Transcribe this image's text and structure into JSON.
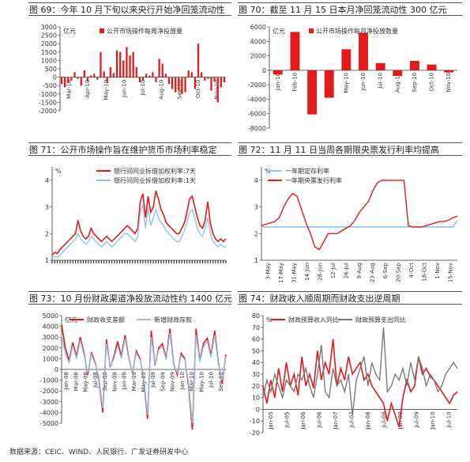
{
  "footer": "数据来源：CEIC、WIND、人民银行、广发证券研发中心",
  "colors": {
    "red": "#e31a1c",
    "gray": "#7a7a7a",
    "lightblue": "#8fc3ea"
  },
  "captions": {
    "c69": "图 69：今年 10 月下旬以来央行开始净回笼流动性",
    "c70": "图 70：截至 11 月 15 日本月净回笼流动性 300 亿元",
    "c71": "图 71：公开市场操作旨在维护货币市场利率稳定",
    "c72": "图 72：11 月 11 日当周各期限央票发行利率均提高",
    "c73": "图 73：10 月份财政渠道净投放流动性约 1400 亿元",
    "c74": "图 74：财政收入顺周期而财政支出逆周期"
  },
  "chart_data": [
    {
      "id": "p69",
      "type": "bar",
      "unit": "亿元",
      "legend": [
        "公开市场操作每周净投放量"
      ],
      "ylim": [
        -2000,
        3000
      ],
      "yticks": [
        -2000,
        -1500,
        -1000,
        -500,
        0,
        500,
        1000,
        1500,
        2000,
        2500,
        3000
      ],
      "xticks": [
        "Mar-10",
        "Apr-10",
        "May-10",
        "Jun-10",
        "Jul-10",
        "Aug-10",
        "Sep-10",
        "Oct-10",
        "Nov-10"
      ],
      "series": [
        {
          "name": "公开市场操作每周净投放量",
          "values": [
            -400,
            -600,
            -350,
            -200,
            300,
            -100,
            -500,
            400,
            -250,
            100,
            200,
            -150,
            1500,
            350,
            -350,
            600,
            250,
            1600,
            1500,
            1000,
            1800,
            1300,
            1500,
            600,
            -300,
            -200,
            200,
            100,
            300,
            -300,
            1100,
            800,
            200,
            -400,
            -700,
            -900,
            -800,
            -1000,
            -900,
            400,
            300,
            -700,
            2000,
            300,
            -200,
            -100,
            -800,
            -250,
            -1500,
            -600,
            -300
          ]
        }
      ]
    },
    {
      "id": "p70",
      "type": "bar",
      "unit": "亿元",
      "legend": [
        "公开市场操作每月净投放数量"
      ],
      "ylim": [
        -8000,
        6000
      ],
      "yticks": [
        -8000,
        -6000,
        -4000,
        -2000,
        0,
        2000,
        4000,
        6000
      ],
      "xticks": [
        "Jan-10",
        "Feb-10",
        "Mar-10",
        "Apr-10",
        "May-10",
        "Jun-10",
        "Jul-10",
        "Aug-10",
        "Sep-10",
        "Oct-10",
        "Nov-10"
      ],
      "series": [
        {
          "name": "公开市场操作每月净投放数量",
          "values": [
            -600,
            5300,
            -6100,
            -3800,
            2900,
            5200,
            1000,
            -800,
            1300,
            800,
            -300
          ]
        }
      ]
    },
    {
      "id": "p71",
      "type": "line",
      "unit": "%",
      "ylim": [
        1,
        4.5
      ],
      "yticks": [
        1,
        2,
        3,
        4
      ],
      "legend": [
        "银行间同业拆借加权利率:7天",
        "银行间同业拆借加权利率:1天"
      ],
      "series": [
        {
          "name": "银行间同业拆借加权利率:7天",
          "color": "#e31a1c",
          "values": [
            1.2,
            1.3,
            1.25,
            1.4,
            1.5,
            1.6,
            1.7,
            1.8,
            1.9,
            2.0,
            2.5,
            2.1,
            1.9,
            1.8,
            1.9,
            2.2,
            2.0,
            1.9,
            1.8,
            1.7,
            1.8,
            1.9,
            1.8,
            1.7,
            1.8,
            1.9,
            2.0,
            2.1,
            2.2,
            2.3,
            2.2,
            2.1,
            2.0,
            2.2,
            3.2,
            3.5,
            2.6,
            3.4,
            2.8,
            3.0,
            3.6,
            3.3,
            2.9,
            2.7,
            2.4,
            2.3,
            2.2,
            2.1,
            2.0,
            2.0,
            2.2,
            2.4,
            2.8,
            3.3,
            3.4,
            3.0,
            2.6,
            2.3,
            2.2,
            2.5,
            3.2,
            2.4,
            2.0,
            1.8,
            1.7,
            1.8,
            1.7,
            1.8
          ]
        },
        {
          "name": "银行间同业拆借加权利率:1天",
          "color": "#8fc3ea",
          "values": [
            1.1,
            1.15,
            1.1,
            1.2,
            1.3,
            1.4,
            1.5,
            1.6,
            1.7,
            1.8,
            2.0,
            1.8,
            1.7,
            1.6,
            1.7,
            1.9,
            1.8,
            1.7,
            1.6,
            1.5,
            1.6,
            1.7,
            1.6,
            1.5,
            1.6,
            1.7,
            1.8,
            1.9,
            2.0,
            2.0,
            1.9,
            1.8,
            1.7,
            1.9,
            2.8,
            3.1,
            2.2,
            3.0,
            2.3,
            2.6,
            2.9,
            2.6,
            2.4,
            2.3,
            2.1,
            2.0,
            1.9,
            1.8,
            1.7,
            1.7,
            1.9,
            2.1,
            2.4,
            2.8,
            2.9,
            2.6,
            2.2,
            2.0,
            1.9,
            2.2,
            2.6,
            2.0,
            1.7,
            1.6,
            1.5,
            1.6,
            1.5,
            1.5
          ]
        }
      ]
    },
    {
      "id": "p72",
      "type": "line",
      "unit": "%",
      "ylim": [
        1,
        4.5
      ],
      "yticks": [
        1,
        2,
        3,
        4
      ],
      "legend": [
        "一年期定存利率",
        "一年期央票发行利率"
      ],
      "xticks": [
        "3-May",
        "17-May",
        "31-May",
        "14-Jun",
        "28-Jun",
        "12-Jul",
        "26-Jul",
        "9-Aug",
        "23-Aug",
        "6-Sep",
        "20-Sep",
        "4-Oct",
        "18-Oct",
        "1-Nov",
        "15-Nov"
      ],
      "series": [
        {
          "name": "一年期定存利率",
          "color": "#8fc3ea",
          "values": [
            2.25,
            2.25,
            2.25,
            2.25,
            2.25,
            2.25,
            2.25,
            2.25,
            2.25,
            2.25,
            2.25,
            2.25,
            2.25,
            2.25,
            2.25,
            2.25,
            2.25,
            2.25,
            2.25,
            2.25,
            2.25,
            2.25,
            2.25,
            2.25,
            2.25,
            2.25,
            2.25,
            2.25,
            2.25,
            2.25,
            2.25,
            2.25,
            2.25,
            2.25,
            2.25,
            2.25,
            2.25,
            2.25,
            2.25,
            2.25,
            2.25,
            2.25,
            2.25,
            2.25,
            2.5
          ]
        },
        {
          "name": "一年期央票发行利率",
          "color": "#e31a1c",
          "values": [
            2.3,
            2.35,
            2.4,
            2.45,
            2.6,
            3.0,
            3.3,
            3.5,
            3.4,
            2.9,
            2.4,
            2.0,
            1.5,
            1.4,
            1.7,
            2.0,
            2.0,
            2.0,
            2.1,
            2.2,
            2.3,
            2.5,
            2.8,
            3.0,
            3.2,
            3.6,
            3.9,
            4.0,
            4.0,
            4.0,
            4.0,
            4.0,
            4.0,
            2.3,
            2.25,
            2.25,
            2.25,
            2.3,
            2.35,
            2.4,
            2.45,
            2.45,
            2.5,
            2.6,
            2.65
          ]
        }
      ]
    },
    {
      "id": "p73",
      "type": "line",
      "unit": "亿元",
      "legend": [
        "财政收支差额",
        "新增财政存款"
      ],
      "ylim": [
        -5000,
        5000
      ],
      "yticks": [
        -5000,
        -4000,
        -3000,
        -2000,
        -1000,
        0,
        1000,
        2000,
        3000,
        4000,
        5000
      ],
      "xticks": [
        "Jan-08",
        "Mar-08",
        "May-08",
        "Jul-08",
        "Sep-08",
        "Nov-08",
        "Jan-09",
        "Mar-09",
        "May-09",
        "Jul-09",
        "Sep-09",
        "Nov-09",
        "Jan-10",
        "Mar-10",
        "May-10",
        "Jul-10",
        "Sep-10"
      ],
      "series": [
        {
          "name": "财政收支差额",
          "color": "#e31a1c",
          "values": [
            4200,
            2000,
            800,
            2500,
            1200,
            3000,
            1500,
            -500,
            1600,
            600,
            -1000,
            -4000,
            2800,
            200,
            1200,
            2600,
            1200,
            3200,
            1000,
            -300,
            1700,
            1000,
            -800,
            -4600,
            3600,
            400,
            2000,
            2400,
            1000,
            3800,
            500,
            -500,
            1500,
            1000,
            -1500,
            -5600,
            3800,
            800,
            2400,
            2900,
            1300,
            3600,
            600,
            -1300,
            1400
          ]
        },
        {
          "name": "新增财政存款",
          "color": "#8fc3ea",
          "values": [
            3200,
            1500,
            600,
            2200,
            1000,
            2700,
            1300,
            -300,
            1400,
            500,
            -800,
            -3600,
            2400,
            300,
            1000,
            2200,
            1000,
            2900,
            900,
            -200,
            1500,
            900,
            -600,
            -4200,
            3000,
            500,
            1800,
            2100,
            900,
            3400,
            400,
            -300,
            1300,
            900,
            -1200,
            -5000,
            3200,
            700,
            2100,
            2600,
            1100,
            3200,
            500,
            -1000,
            1200
          ]
        }
      ]
    },
    {
      "id": "p74",
      "type": "line",
      "unit": "%",
      "legend": [
        "财政预算收入同比",
        "财政预算支出同比"
      ],
      "ylim": [
        -20,
        80
      ],
      "yticks": [
        -20,
        -10,
        0,
        10,
        20,
        30,
        40,
        50,
        60,
        70,
        80
      ],
      "xticks": [
        "Jan-05",
        "Jul-05",
        "Jan-06",
        "Jul-06",
        "Jan-07",
        "Jul-07",
        "Jan-08",
        "Jul-08",
        "Jan-09",
        "Jul-09",
        "Jan-10",
        "Jul-10"
      ],
      "series": [
        {
          "name": "财政预算收入同比",
          "color": "#e31a1c",
          "values": [
            20,
            5,
            25,
            10,
            35,
            15,
            40,
            20,
            30,
            12,
            45,
            20,
            30,
            18,
            50,
            25,
            40,
            30,
            60,
            20,
            35,
            25,
            45,
            30,
            35,
            40,
            25,
            30,
            20,
            15,
            10,
            5,
            -10,
            5,
            -5,
            -15,
            10,
            25,
            15,
            20,
            45,
            30,
            35,
            28,
            25,
            20,
            15,
            10,
            5,
            12,
            15
          ]
        },
        {
          "name": "财政预算支出同比",
          "color": "#7a7a7a",
          "values": [
            10,
            25,
            15,
            30,
            20,
            10,
            25,
            20,
            15,
            30,
            25,
            35,
            20,
            10,
            30,
            55,
            15,
            10,
            35,
            20,
            25,
            15,
            30,
            -5,
            25,
            35,
            45,
            20,
            40,
            30,
            25,
            70,
            15,
            20,
            30,
            25,
            35,
            20,
            40,
            25,
            45,
            35,
            20,
            30,
            25,
            15,
            20,
            30,
            35,
            40,
            35
          ]
        }
      ]
    }
  ]
}
